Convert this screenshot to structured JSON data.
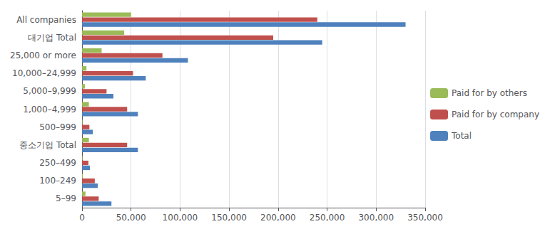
{
  "chart_data": {
    "type": "bar",
    "orientation": "horizontal",
    "categories": [
      "All companies",
      "대기업 Total",
      "25,000 or more",
      "10,000–24,999",
      "5,000–9,999",
      "1,000–4,999",
      "500–999",
      "중소기업 Total",
      "250–499",
      "100–249",
      "5–99"
    ],
    "series": [
      {
        "name": "Paid for by others",
        "color": "#9BBB59",
        "values": [
          50000,
          43000,
          20000,
          4500,
          3000,
          7000,
          500,
          7000,
          500,
          800,
          3500
        ]
      },
      {
        "name": "Paid for by company",
        "color": "#C0504D",
        "values": [
          240000,
          195000,
          82000,
          52000,
          25000,
          46000,
          7500,
          46000,
          6500,
          13000,
          17000
        ]
      },
      {
        "name": "Total",
        "color": "#4F81BD",
        "values": [
          330000,
          245000,
          108000,
          65000,
          32000,
          57000,
          11000,
          57000,
          8000,
          16000,
          30000
        ]
      }
    ],
    "xlim": [
      0,
      350000
    ],
    "xticks": [
      0,
      {
        "value": 50000,
        "label": "50,000"
      },
      {
        "value": 100000,
        "label": "100,000"
      },
      {
        "value": 150000,
        "label": "150,000"
      },
      {
        "value": 200000,
        "label": "200,000"
      },
      {
        "value": 250000,
        "label": "250,000"
      },
      {
        "value": 300000,
        "label": "300,000"
      },
      {
        "value": 350000,
        "label": "350,000"
      }
    ],
    "grid": true,
    "legend": "right"
  }
}
